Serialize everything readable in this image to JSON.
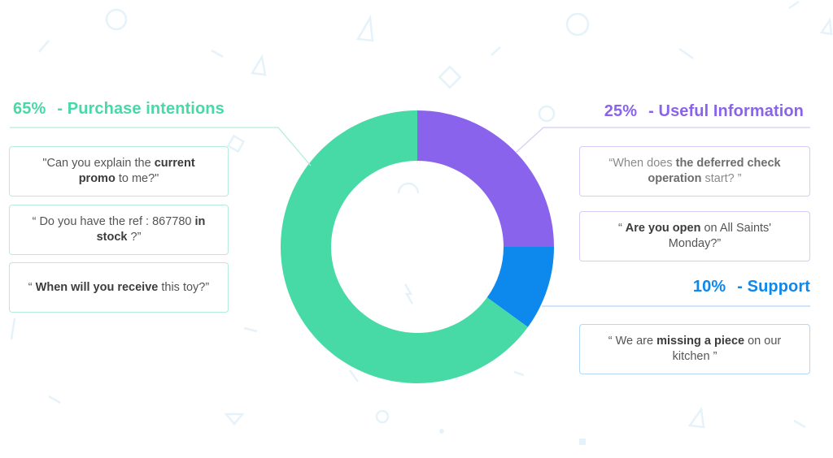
{
  "colors": {
    "green": "#47d9a6",
    "purple": "#8a63ec",
    "blue": "#0d88ec",
    "decor": "#e8f4fb"
  },
  "chart_data": {
    "type": "pie",
    "donut": true,
    "categories": [
      "Useful Information",
      "Support",
      "Purchase intentions"
    ],
    "values": [
      25,
      10,
      65
    ],
    "unit": "%",
    "title": "",
    "segments": [
      {
        "label": "Purchase intentions",
        "value": 65,
        "percent_label": "65%",
        "color": "#47d9a6"
      },
      {
        "label": "Useful Information",
        "value": 25,
        "percent_label": "25%",
        "color": "#8a63ec"
      },
      {
        "label": "Support",
        "value": 10,
        "percent_label": "10%",
        "color": "#0d88ec"
      }
    ]
  },
  "headings": {
    "purchase": {
      "percent": "65%",
      "label": "- Purchase intentions"
    },
    "useful": {
      "percent": "25%",
      "label": "- Useful Information"
    },
    "support": {
      "percent": "10%",
      "label": "- Support"
    }
  },
  "quotes": {
    "purchase": [
      [
        {
          "t": "\"Can you explain the ",
          "b": false
        },
        {
          "t": "current promo",
          "b": true
        },
        {
          "t": " to me?\"",
          "b": false
        }
      ],
      [
        {
          "t": "“ Do you have the ref : 867780 ",
          "b": false
        },
        {
          "t": "in stock",
          "b": true
        },
        {
          "t": " ?”",
          "b": false
        }
      ],
      [
        {
          "t": "“ ",
          "b": false
        },
        {
          "t": "When will you receive",
          "b": true
        },
        {
          "t": " this toy?”",
          "b": false
        }
      ]
    ],
    "useful": [
      [
        {
          "t": "“When does ",
          "b": false
        },
        {
          "t": "the deferred check operation",
          "b": true
        },
        {
          "t": " start? ”",
          "b": false
        }
      ],
      [
        {
          "t": "“ ",
          "b": false
        },
        {
          "t": "Are you open",
          "b": true
        },
        {
          "t": " on All Saints' Monday?”",
          "b": false
        }
      ]
    ],
    "support": [
      [
        {
          "t": "“ We are ",
          "b": false
        },
        {
          "t": "missing a piece",
          "b": true
        },
        {
          "t": " on our kitchen ”",
          "b": false
        }
      ]
    ]
  }
}
